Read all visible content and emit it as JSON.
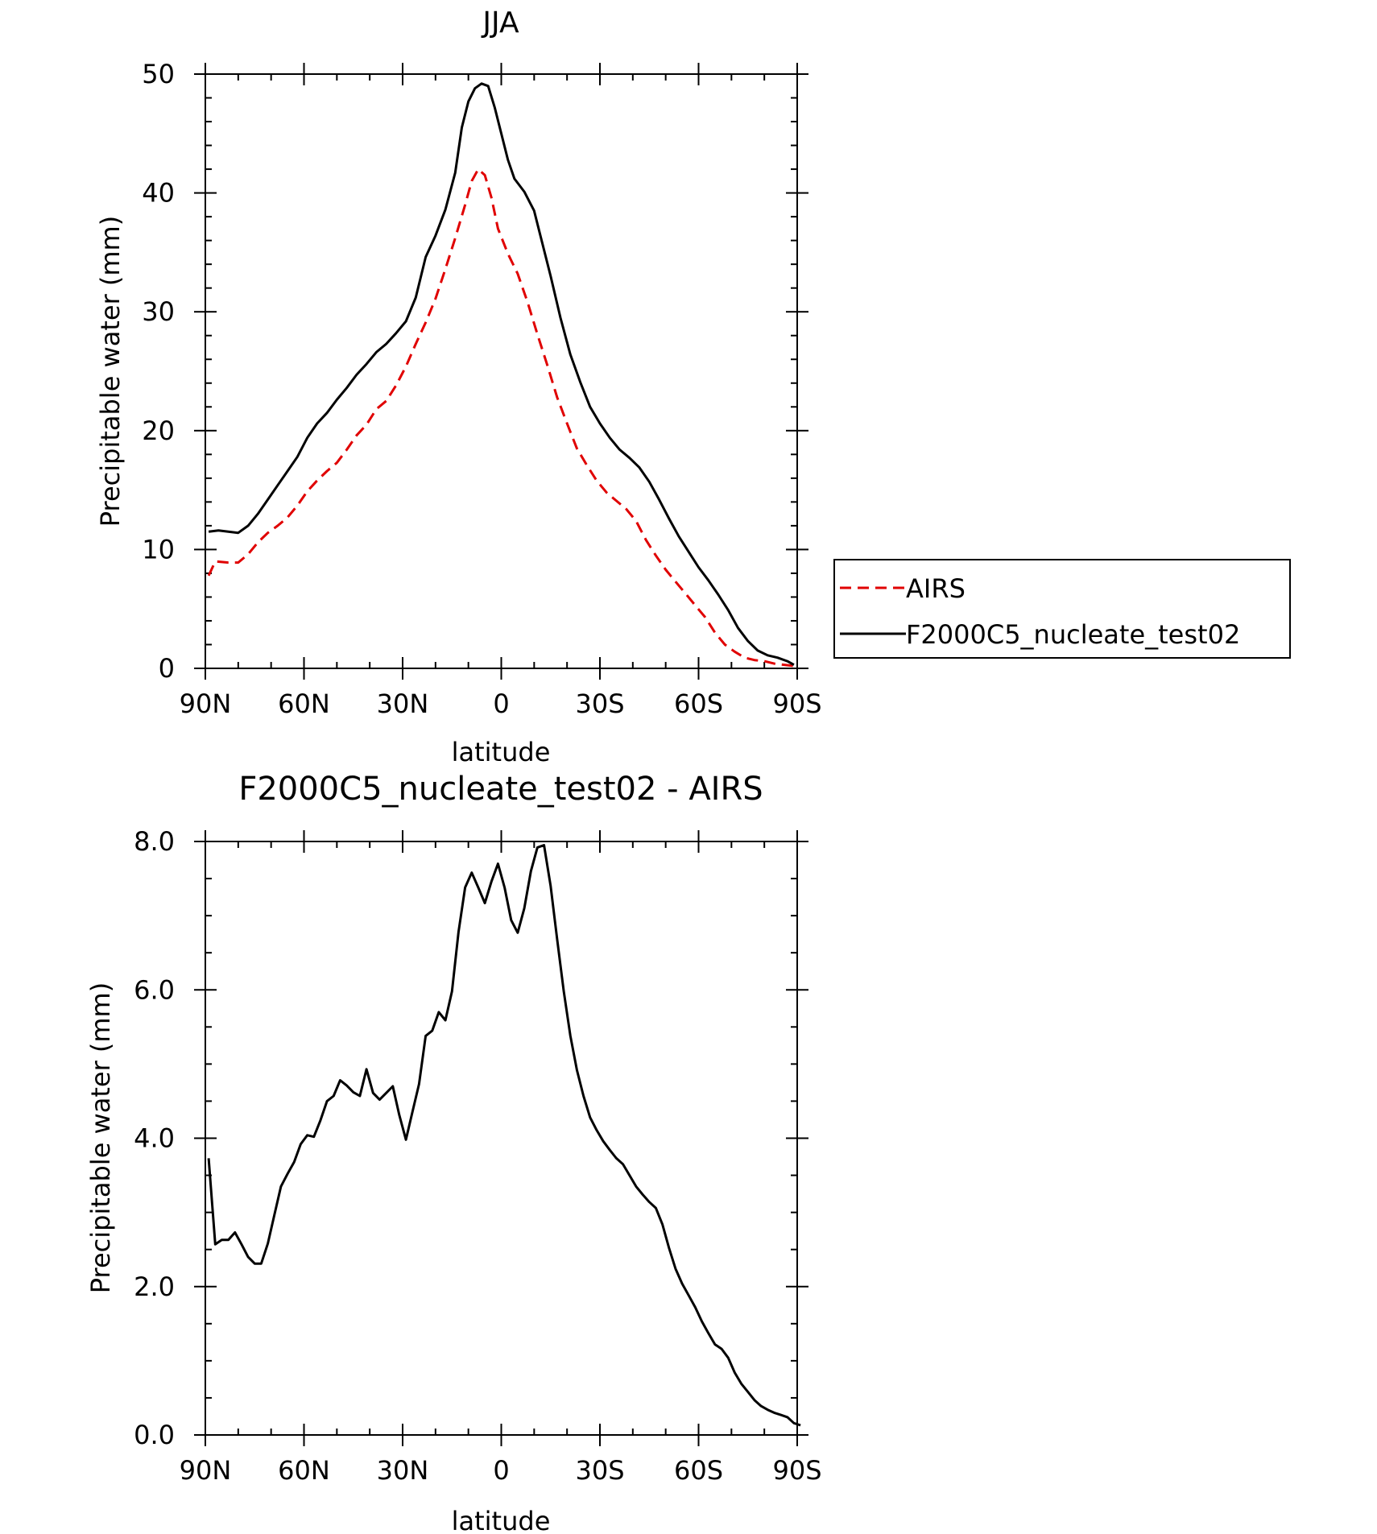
{
  "chart_data": [
    {
      "type": "line",
      "title": "JJA",
      "xlabel": "latitude",
      "ylabel": "Precipitable water (mm)",
      "xlim": [
        90,
        -90
      ],
      "ylim": [
        0,
        50
      ],
      "xticks": [
        90,
        60,
        30,
        0,
        -30,
        -60,
        -90
      ],
      "xtick_labels": [
        "90N",
        "60N",
        "30N",
        "0",
        "30S",
        "60S",
        "90S"
      ],
      "yticks": [
        0,
        10,
        20,
        30,
        40,
        50
      ],
      "ytick_labels": [
        "0",
        "10",
        "20",
        "30",
        "40",
        "50"
      ],
      "legend_position": "right",
      "series": [
        {
          "name": "AIRS",
          "color": "#e00000",
          "dash": "dashed",
          "points": [
            [
              89,
              7.8
            ],
            [
              87,
              9.0
            ],
            [
              83,
              8.9
            ],
            [
              80,
              8.9
            ],
            [
              77,
              9.6
            ],
            [
              74,
              10.6
            ],
            [
              71,
              11.4
            ],
            [
              68,
              12.0
            ],
            [
              65,
              12.7
            ],
            [
              62,
              13.7
            ],
            [
              59,
              14.9
            ],
            [
              56,
              15.8
            ],
            [
              53,
              16.6
            ],
            [
              50,
              17.3
            ],
            [
              47,
              18.4
            ],
            [
              44,
              19.6
            ],
            [
              41,
              20.5
            ],
            [
              38,
              21.8
            ],
            [
              35,
              22.5
            ],
            [
              32,
              23.8
            ],
            [
              29,
              25.4
            ],
            [
              26,
              27.3
            ],
            [
              23,
              29.1
            ],
            [
              20,
              31.1
            ],
            [
              17,
              33.6
            ],
            [
              14,
              36.2
            ],
            [
              11,
              39.0
            ],
            [
              9,
              41.0
            ],
            [
              7,
              42.0
            ],
            [
              5,
              41.5
            ],
            [
              3,
              39.6
            ],
            [
              1,
              37.0
            ],
            [
              -2,
              34.9
            ],
            [
              -5,
              33.2
            ],
            [
              -8,
              30.8
            ],
            [
              -11,
              28.1
            ],
            [
              -14,
              25.5
            ],
            [
              -17,
              22.8
            ],
            [
              -20,
              20.6
            ],
            [
              -23,
              18.5
            ],
            [
              -26,
              17.1
            ],
            [
              -29,
              15.8
            ],
            [
              -32,
              14.8
            ],
            [
              -35,
              14.1
            ],
            [
              -38,
              13.4
            ],
            [
              -41,
              12.4
            ],
            [
              -44,
              10.8
            ],
            [
              -47,
              9.5
            ],
            [
              -50,
              8.3
            ],
            [
              -53,
              7.3
            ],
            [
              -56,
              6.3
            ],
            [
              -59,
              5.3
            ],
            [
              -62,
              4.3
            ],
            [
              -65,
              3.0
            ],
            [
              -68,
              2.0
            ],
            [
              -71,
              1.4
            ],
            [
              -74,
              0.9
            ],
            [
              -77,
              0.7
            ],
            [
              -80,
              0.6
            ],
            [
              -83,
              0.4
            ],
            [
              -86,
              0.3
            ],
            [
              -89,
              0.2
            ]
          ]
        },
        {
          "name": "F2000C5_nucleate_test02",
          "color": "#000000",
          "dash": "solid",
          "points": [
            [
              89,
              11.5
            ],
            [
              86,
              11.6
            ],
            [
              83,
              11.5
            ],
            [
              80,
              11.4
            ],
            [
              77,
              12.0
            ],
            [
              74,
              13.0
            ],
            [
              71,
              14.2
            ],
            [
              68,
              15.4
            ],
            [
              65,
              16.6
            ],
            [
              62,
              17.8
            ],
            [
              59,
              19.4
            ],
            [
              56,
              20.6
            ],
            [
              53,
              21.5
            ],
            [
              50,
              22.6
            ],
            [
              47,
              23.6
            ],
            [
              44,
              24.7
            ],
            [
              41,
              25.6
            ],
            [
              38,
              26.6
            ],
            [
              35,
              27.3
            ],
            [
              32,
              28.2
            ],
            [
              29,
              29.2
            ],
            [
              26,
              31.2
            ],
            [
              23,
              34.6
            ],
            [
              20,
              36.4
            ],
            [
              17,
              38.6
            ],
            [
              14,
              41.7
            ],
            [
              12,
              45.5
            ],
            [
              10,
              47.7
            ],
            [
              8,
              48.8
            ],
            [
              6,
              49.2
            ],
            [
              4,
              49.0
            ],
            [
              2,
              47.2
            ],
            [
              0,
              45.0
            ],
            [
              -2,
              42.8
            ],
            [
              -4,
              41.2
            ],
            [
              -7,
              40.1
            ],
            [
              -10,
              38.5
            ],
            [
              -12,
              36.3
            ],
            [
              -15,
              33.0
            ],
            [
              -18,
              29.5
            ],
            [
              -21,
              26.4
            ],
            [
              -24,
              24.1
            ],
            [
              -27,
              22.0
            ],
            [
              -30,
              20.6
            ],
            [
              -33,
              19.4
            ],
            [
              -36,
              18.4
            ],
            [
              -39,
              17.7
            ],
            [
              -42,
              16.9
            ],
            [
              -45,
              15.7
            ],
            [
              -48,
              14.2
            ],
            [
              -51,
              12.6
            ],
            [
              -54,
              11.1
            ],
            [
              -57,
              9.8
            ],
            [
              -60,
              8.5
            ],
            [
              -63,
              7.4
            ],
            [
              -66,
              6.2
            ],
            [
              -69,
              4.9
            ],
            [
              -72,
              3.4
            ],
            [
              -75,
              2.3
            ],
            [
              -78,
              1.5
            ],
            [
              -81,
              1.1
            ],
            [
              -84,
              0.9
            ],
            [
              -87,
              0.6
            ],
            [
              -89,
              0.3
            ]
          ]
        }
      ]
    },
    {
      "type": "line",
      "title": "F2000C5_nucleate_test02 - AIRS",
      "xlabel": "latitude",
      "ylabel": "Precipitable water (mm)",
      "xlim": [
        90,
        -90
      ],
      "ylim": [
        0,
        8
      ],
      "xticks": [
        90,
        60,
        30,
        0,
        -30,
        -60,
        -90
      ],
      "xtick_labels": [
        "90N",
        "60N",
        "30N",
        "0",
        "30S",
        "60S",
        "90S"
      ],
      "yticks": [
        0,
        2,
        4,
        6,
        8
      ],
      "ytick_labels": [
        "0.0",
        "2.0",
        "4.0",
        "6.0",
        "8.0"
      ],
      "series": [
        {
          "color": "#000000",
          "dash": "solid",
          "points": [
            [
              89,
              3.73
            ],
            [
              87,
              2.57
            ],
            [
              85,
              2.63
            ],
            [
              83,
              2.63
            ],
            [
              81,
              2.73
            ],
            [
              79,
              2.57
            ],
            [
              77,
              2.4
            ],
            [
              75,
              2.31
            ],
            [
              73,
              2.31
            ],
            [
              71,
              2.58
            ],
            [
              69,
              2.97
            ],
            [
              67,
              3.35
            ],
            [
              65,
              3.52
            ],
            [
              63,
              3.68
            ],
            [
              61,
              3.92
            ],
            [
              59,
              4.04
            ],
            [
              57,
              4.02
            ],
            [
              55,
              4.24
            ],
            [
              53,
              4.5
            ],
            [
              51,
              4.57
            ],
            [
              49,
              4.78
            ],
            [
              47,
              4.71
            ],
            [
              45,
              4.62
            ],
            [
              43,
              4.57
            ],
            [
              41,
              4.93
            ],
            [
              39,
              4.61
            ],
            [
              37,
              4.52
            ],
            [
              35,
              4.61
            ],
            [
              33,
              4.7
            ],
            [
              31,
              4.31
            ],
            [
              29,
              3.98
            ],
            [
              27,
              4.36
            ],
            [
              25,
              4.73
            ],
            [
              23,
              5.38
            ],
            [
              21,
              5.45
            ],
            [
              19,
              5.7
            ],
            [
              17,
              5.59
            ],
            [
              15,
              5.98
            ],
            [
              13,
              6.78
            ],
            [
              11,
              7.38
            ],
            [
              9,
              7.58
            ],
            [
              7,
              7.38
            ],
            [
              5,
              7.17
            ],
            [
              3,
              7.46
            ],
            [
              1,
              7.7
            ],
            [
              -1,
              7.38
            ],
            [
              -3,
              6.94
            ],
            [
              -5,
              6.77
            ],
            [
              -7,
              7.1
            ],
            [
              -9,
              7.6
            ],
            [
              -11,
              7.92
            ],
            [
              -13,
              7.95
            ],
            [
              -15,
              7.4
            ],
            [
              -17,
              6.68
            ],
            [
              -19,
              5.98
            ],
            [
              -21,
              5.38
            ],
            [
              -23,
              4.92
            ],
            [
              -25,
              4.57
            ],
            [
              -27,
              4.28
            ],
            [
              -29,
              4.11
            ],
            [
              -31,
              3.96
            ],
            [
              -33,
              3.84
            ],
            [
              -35,
              3.73
            ],
            [
              -37,
              3.65
            ],
            [
              -39,
              3.5
            ],
            [
              -41,
              3.35
            ],
            [
              -43,
              3.24
            ],
            [
              -45,
              3.14
            ],
            [
              -47,
              3.06
            ],
            [
              -49,
              2.84
            ],
            [
              -51,
              2.52
            ],
            [
              -53,
              2.24
            ],
            [
              -55,
              2.04
            ],
            [
              -57,
              1.88
            ],
            [
              -59,
              1.72
            ],
            [
              -61,
              1.53
            ],
            [
              -63,
              1.37
            ],
            [
              -65,
              1.22
            ],
            [
              -67,
              1.16
            ],
            [
              -69,
              1.04
            ],
            [
              -71,
              0.84
            ],
            [
              -73,
              0.69
            ],
            [
              -75,
              0.58
            ],
            [
              -77,
              0.47
            ],
            [
              -79,
              0.39
            ],
            [
              -81,
              0.34
            ],
            [
              -83,
              0.3
            ],
            [
              -85,
              0.27
            ],
            [
              -87,
              0.24
            ],
            [
              -89,
              0.16
            ],
            [
              -91,
              0.13
            ]
          ]
        }
      ]
    }
  ]
}
